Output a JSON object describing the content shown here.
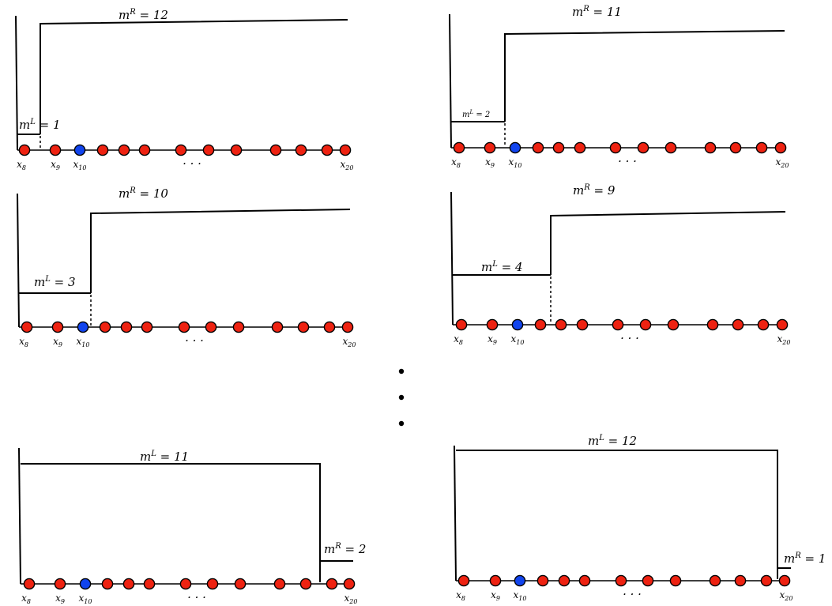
{
  "colors": {
    "node_default": "#ee2211",
    "node_highlight": "#1144ee",
    "line": "#000000"
  },
  "node_labels": {
    "first": {
      "base": "x",
      "sub": "8"
    },
    "second": {
      "base": "x",
      "sub": "9"
    },
    "third": {
      "base": "x",
      "sub": "10"
    },
    "last": {
      "base": "x",
      "sub": "20"
    },
    "ellipsis": "· · ·"
  },
  "vertical_ellipsis": "• • •",
  "panels": [
    {
      "id": "p1",
      "left_label": {
        "base": "m",
        "sup": "L",
        "rest": " = 1"
      },
      "right_label": {
        "base": "m",
        "sup": "R",
        "rest": " = 12"
      }
    },
    {
      "id": "p2",
      "left_label": {
        "base": "m",
        "sup": "L",
        "rest": " = 2"
      },
      "right_label": {
        "base": "m",
        "sup": "R",
        "rest": " = 11"
      }
    },
    {
      "id": "p3",
      "left_label": {
        "base": "m",
        "sup": "L",
        "rest": " = 3"
      },
      "right_label": {
        "base": "m",
        "sup": "R",
        "rest": " = 10"
      }
    },
    {
      "id": "p4",
      "left_label": {
        "base": "m",
        "sup": "L",
        "rest": " = 4"
      },
      "right_label": {
        "base": "m",
        "sup": "R",
        "rest": " = 9"
      }
    },
    {
      "id": "p5",
      "left_label": {
        "base": "m",
        "sup": "L",
        "rest": " = 11"
      },
      "right_label": {
        "base": "m",
        "sup": "R",
        "rest": " = 2"
      }
    },
    {
      "id": "p6",
      "left_label": {
        "base": "m",
        "sup": "L",
        "rest": " = 12"
      },
      "right_label": {
        "base": "m",
        "sup": "R",
        "rest": " = 1"
      }
    }
  ]
}
